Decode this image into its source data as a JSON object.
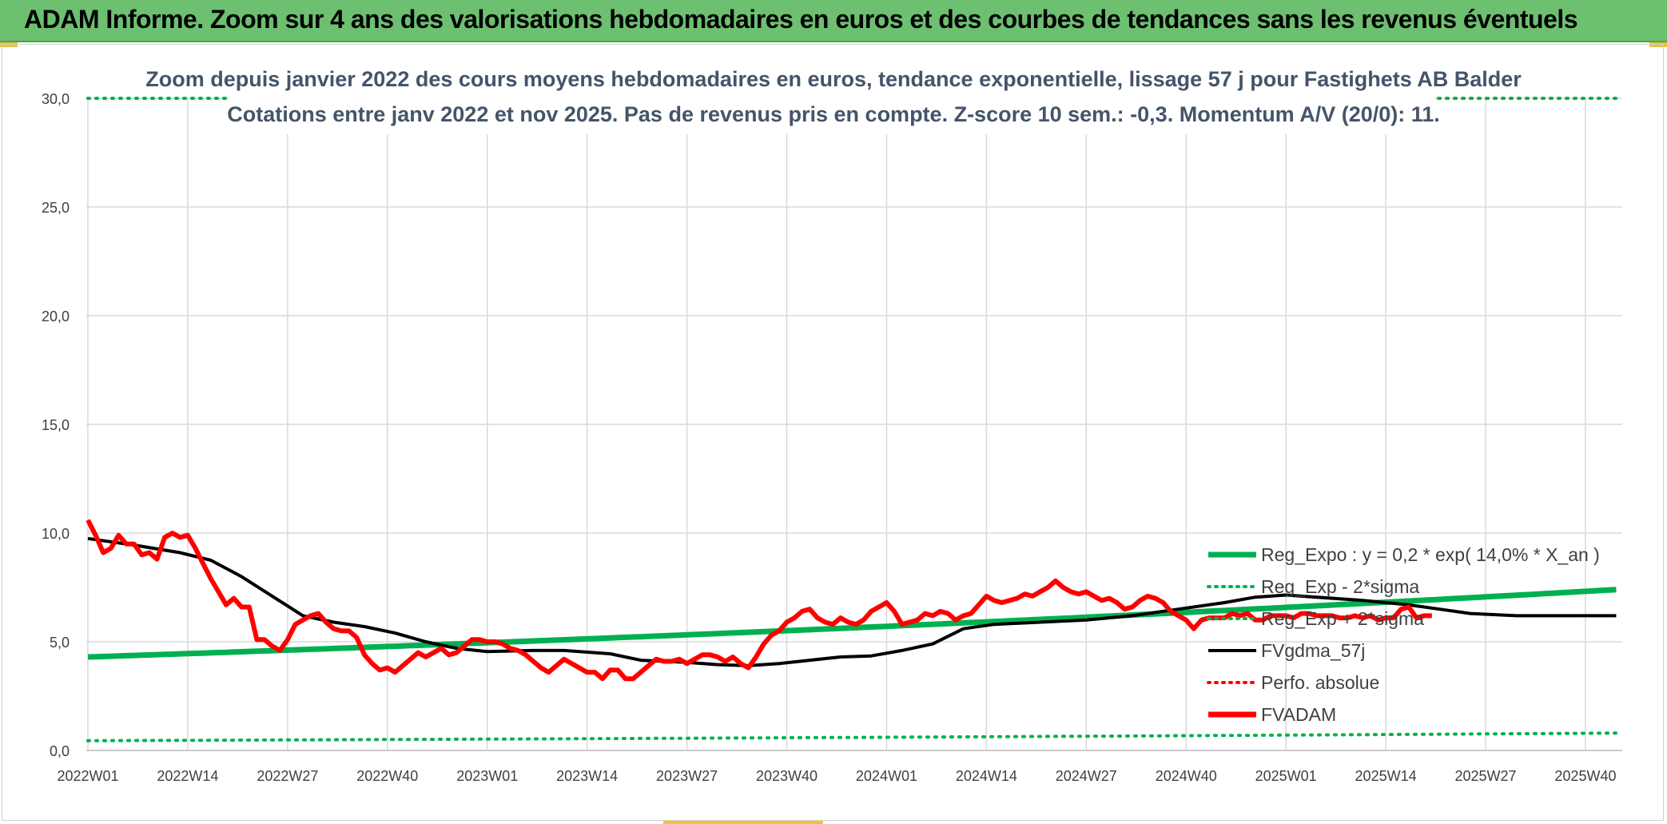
{
  "banner": {
    "title": "ADAM Informe. Zoom sur 4 ans des valorisations hebdomadaires en euros et des courbes de tendances sans les revenus éventuels"
  },
  "colors": {
    "banner_bg": "#6cc070",
    "green": "#00b050",
    "black": "#000000",
    "red": "#ff0000",
    "title": "#44546a",
    "grid": "#d9d9d9"
  },
  "chart_data": {
    "type": "line",
    "title_line1": "Zoom depuis janvier 2022 des cours moyens hebdomadaires en euros, tendance exponentielle, lissage 57 j pour Fastighets AB Balder",
    "title_line2": "Cotations entre janv 2022 et nov 2025. Pas de revenus pris en compte. Z-score 10 sem.: -0,3. Momentum A/V (20/0): 11.",
    "ylim": [
      0,
      30
    ],
    "y_ticks": [
      "0,0",
      "5,0",
      "10,0",
      "15,0",
      "20,0",
      "25,0",
      "30,0"
    ],
    "y_tick_values": [
      0,
      5,
      10,
      15,
      20,
      25,
      30
    ],
    "n_weeks": 200,
    "x_tick_labels": [
      "2022W01",
      "2022W14",
      "2022W27",
      "2022W40",
      "2023W01",
      "2023W14",
      "2023W27",
      "2023W40",
      "2024W01",
      "2024W14",
      "2024W27",
      "2024W40",
      "2025W01",
      "2025W14",
      "2025W27",
      "2025W40"
    ],
    "x_tick_index": [
      0,
      13,
      26,
      39,
      52,
      65,
      78,
      91,
      104,
      117,
      130,
      143,
      156,
      169,
      182,
      195
    ],
    "legend": [
      {
        "label": "Reg_Expo : y = 0,2 * exp( 14,0% *  X_an )",
        "color": "#00b050",
        "style": "solid-thick"
      },
      {
        "label": "Reg_Exp - 2*sigma",
        "color": "#00b050",
        "style": "dotted"
      },
      {
        "label": "Reg_Exp + 2*sigma",
        "color": "#00b050",
        "style": "dotted"
      },
      {
        "label": "FVgdma_57j",
        "color": "#000000",
        "style": "solid"
      },
      {
        "label": "Perfo. absolue",
        "color": "#ff0000",
        "style": "dotted"
      },
      {
        "label": "FVADAM",
        "color": "#ff0000",
        "style": "solid-thick"
      }
    ],
    "series": [
      {
        "name": "Reg_Expo",
        "start": 4.3,
        "end": 7.4
      },
      {
        "name": "Reg_Exp - 2*sigma",
        "start": 0.45,
        "end": 0.8
      },
      {
        "name": "Reg_Exp + 2*sigma",
        "start": 30.0,
        "end": 30.0
      },
      {
        "name": "FVgdma_57j",
        "points": [
          [
            0,
            9.75
          ],
          [
            6,
            9.45
          ],
          [
            12,
            9.1
          ],
          [
            16,
            8.75
          ],
          [
            20,
            8.0
          ],
          [
            24,
            7.1
          ],
          [
            28,
            6.2
          ],
          [
            32,
            5.9
          ],
          [
            36,
            5.7
          ],
          [
            40,
            5.4
          ],
          [
            44,
            5.0
          ],
          [
            48,
            4.7
          ],
          [
            52,
            4.55
          ],
          [
            58,
            4.6
          ],
          [
            62,
            4.6
          ],
          [
            68,
            4.45
          ],
          [
            72,
            4.15
          ],
          [
            78,
            4.05
          ],
          [
            82,
            3.95
          ],
          [
            86,
            3.9
          ],
          [
            90,
            4.0
          ],
          [
            94,
            4.15
          ],
          [
            98,
            4.3
          ],
          [
            102,
            4.35
          ],
          [
            106,
            4.6
          ],
          [
            110,
            4.9
          ],
          [
            114,
            5.6
          ],
          [
            118,
            5.8
          ],
          [
            124,
            5.9
          ],
          [
            130,
            6.0
          ],
          [
            136,
            6.2
          ],
          [
            142,
            6.5
          ],
          [
            148,
            6.8
          ],
          [
            152,
            7.05
          ],
          [
            156,
            7.15
          ],
          [
            160,
            7.05
          ],
          [
            166,
            6.9
          ],
          [
            172,
            6.7
          ],
          [
            176,
            6.5
          ],
          [
            180,
            6.3
          ],
          [
            186,
            6.2
          ],
          [
            192,
            6.2
          ],
          [
            199,
            6.2
          ]
        ]
      },
      {
        "name": "FVADAM",
        "points": [
          [
            0,
            10.6
          ],
          [
            1,
            9.9
          ],
          [
            2,
            9.1
          ],
          [
            3,
            9.3
          ],
          [
            4,
            9.9
          ],
          [
            5,
            9.5
          ],
          [
            6,
            9.5
          ],
          [
            7,
            9.0
          ],
          [
            8,
            9.1
          ],
          [
            9,
            8.8
          ],
          [
            10,
            9.8
          ],
          [
            11,
            10.0
          ],
          [
            12,
            9.8
          ],
          [
            13,
            9.9
          ],
          [
            14,
            9.3
          ],
          [
            15,
            8.6
          ],
          [
            16,
            7.9
          ],
          [
            17,
            7.3
          ],
          [
            18,
            6.7
          ],
          [
            19,
            7.0
          ],
          [
            20,
            6.6
          ],
          [
            21,
            6.6
          ],
          [
            22,
            5.1
          ],
          [
            23,
            5.1
          ],
          [
            24,
            4.8
          ],
          [
            25,
            4.6
          ],
          [
            26,
            5.1
          ],
          [
            27,
            5.8
          ],
          [
            28,
            6.0
          ],
          [
            29,
            6.2
          ],
          [
            30,
            6.3
          ],
          [
            31,
            5.9
          ],
          [
            32,
            5.6
          ],
          [
            33,
            5.5
          ],
          [
            34,
            5.5
          ],
          [
            35,
            5.2
          ],
          [
            36,
            4.4
          ],
          [
            37,
            4.0
          ],
          [
            38,
            3.7
          ],
          [
            39,
            3.8
          ],
          [
            40,
            3.6
          ],
          [
            41,
            3.9
          ],
          [
            42,
            4.2
          ],
          [
            43,
            4.5
          ],
          [
            44,
            4.3
          ],
          [
            45,
            4.5
          ],
          [
            46,
            4.7
          ],
          [
            47,
            4.4
          ],
          [
            48,
            4.5
          ],
          [
            49,
            4.8
          ],
          [
            50,
            5.1
          ],
          [
            51,
            5.1
          ],
          [
            52,
            5.0
          ],
          [
            53,
            5.0
          ],
          [
            54,
            4.9
          ],
          [
            55,
            4.7
          ],
          [
            56,
            4.6
          ],
          [
            57,
            4.4
          ],
          [
            58,
            4.1
          ],
          [
            59,
            3.8
          ],
          [
            60,
            3.6
          ],
          [
            61,
            3.9
          ],
          [
            62,
            4.2
          ],
          [
            63,
            4.0
          ],
          [
            64,
            3.8
          ],
          [
            65,
            3.6
          ],
          [
            66,
            3.6
          ],
          [
            67,
            3.3
          ],
          [
            68,
            3.7
          ],
          [
            69,
            3.7
          ],
          [
            70,
            3.3
          ],
          [
            71,
            3.3
          ],
          [
            72,
            3.6
          ],
          [
            73,
            3.9
          ],
          [
            74,
            4.2
          ],
          [
            75,
            4.1
          ],
          [
            76,
            4.1
          ],
          [
            77,
            4.2
          ],
          [
            78,
            4.0
          ],
          [
            79,
            4.2
          ],
          [
            80,
            4.4
          ],
          [
            81,
            4.4
          ],
          [
            82,
            4.3
          ],
          [
            83,
            4.1
          ],
          [
            84,
            4.3
          ],
          [
            85,
            4.0
          ],
          [
            86,
            3.8
          ],
          [
            87,
            4.3
          ],
          [
            88,
            4.9
          ],
          [
            89,
            5.3
          ],
          [
            90,
            5.5
          ],
          [
            91,
            5.9
          ],
          [
            92,
            6.1
          ],
          [
            93,
            6.4
          ],
          [
            94,
            6.5
          ],
          [
            95,
            6.1
          ],
          [
            96,
            5.9
          ],
          [
            97,
            5.8
          ],
          [
            98,
            6.1
          ],
          [
            99,
            5.9
          ],
          [
            100,
            5.8
          ],
          [
            101,
            6.0
          ],
          [
            102,
            6.4
          ],
          [
            103,
            6.6
          ],
          [
            104,
            6.8
          ],
          [
            105,
            6.4
          ],
          [
            106,
            5.8
          ],
          [
            107,
            5.9
          ],
          [
            108,
            6.0
          ],
          [
            109,
            6.3
          ],
          [
            110,
            6.2
          ],
          [
            111,
            6.4
          ],
          [
            112,
            6.3
          ],
          [
            113,
            6.0
          ],
          [
            114,
            6.2
          ],
          [
            115,
            6.3
          ],
          [
            116,
            6.7
          ],
          [
            117,
            7.1
          ],
          [
            118,
            6.9
          ],
          [
            119,
            6.8
          ],
          [
            120,
            6.9
          ],
          [
            121,
            7.0
          ],
          [
            122,
            7.2
          ],
          [
            123,
            7.1
          ],
          [
            124,
            7.3
          ],
          [
            125,
            7.5
          ],
          [
            126,
            7.8
          ],
          [
            127,
            7.5
          ],
          [
            128,
            7.3
          ],
          [
            129,
            7.2
          ],
          [
            130,
            7.3
          ],
          [
            131,
            7.1
          ],
          [
            132,
            6.9
          ],
          [
            133,
            7.0
          ],
          [
            134,
            6.8
          ],
          [
            135,
            6.5
          ],
          [
            136,
            6.6
          ],
          [
            137,
            6.9
          ],
          [
            138,
            7.1
          ],
          [
            139,
            7.0
          ],
          [
            140,
            6.8
          ],
          [
            141,
            6.4
          ],
          [
            142,
            6.2
          ],
          [
            143,
            6.0
          ],
          [
            144,
            5.6
          ],
          [
            145,
            6.0
          ],
          [
            146,
            6.1
          ],
          [
            147,
            6.1
          ],
          [
            148,
            6.1
          ],
          [
            149,
            6.3
          ],
          [
            150,
            6.2
          ],
          [
            151,
            6.3
          ],
          [
            152,
            6.0
          ],
          [
            153,
            6.0
          ],
          [
            154,
            6.2
          ],
          [
            155,
            6.2
          ],
          [
            156,
            6.2
          ],
          [
            157,
            6.1
          ],
          [
            158,
            6.3
          ],
          [
            159,
            6.3
          ],
          [
            160,
            6.2
          ],
          [
            161,
            6.2
          ],
          [
            162,
            6.2
          ],
          [
            163,
            6.1
          ],
          [
            164,
            6.1
          ],
          [
            165,
            6.2
          ],
          [
            166,
            6.1
          ],
          [
            167,
            6.2
          ],
          [
            168,
            6.0
          ],
          [
            169,
            6.1
          ],
          [
            170,
            6.1
          ],
          [
            171,
            6.5
          ],
          [
            172,
            6.6
          ],
          [
            173,
            6.1
          ],
          [
            174,
            6.2
          ],
          [
            175,
            6.2
          ]
        ]
      }
    ]
  }
}
